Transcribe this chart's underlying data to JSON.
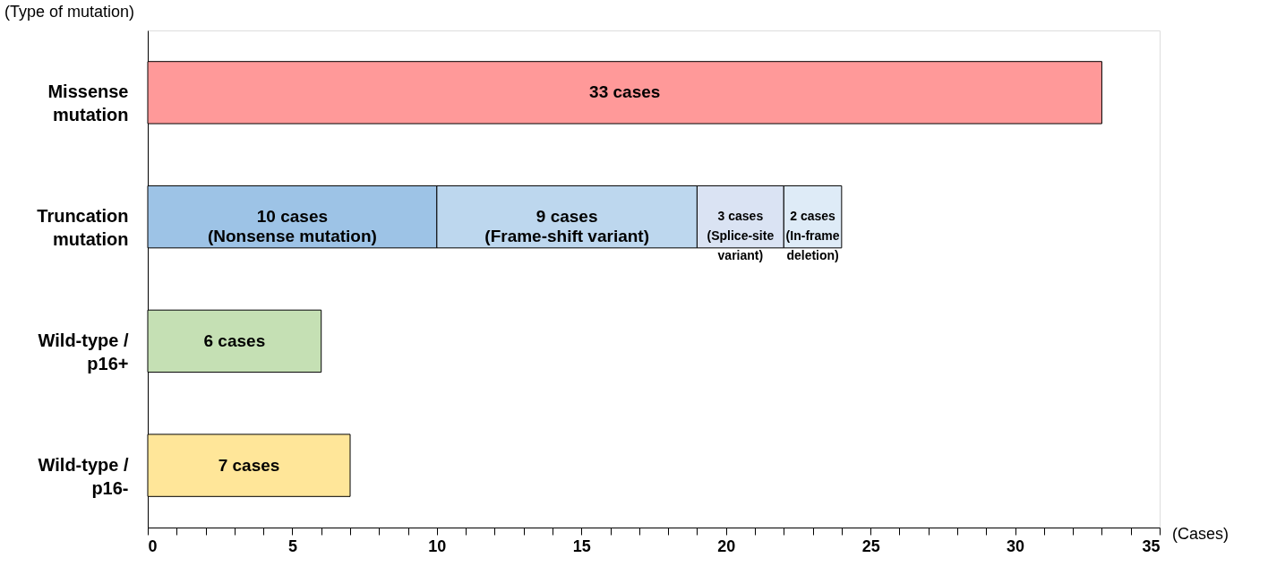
{
  "chart_data": {
    "type": "bar",
    "orientation": "horizontal",
    "stacked": true,
    "categories": [
      "Missense mutation",
      "Truncation mutation",
      "Wild-type / p16+",
      "Wild-type / p16-"
    ],
    "xlabel": "(Cases)",
    "ylabel": "(Type of mutation)",
    "xlim": [
      0,
      35
    ],
    "xticks": [
      0,
      {
        "value": 1,
        "label": null
      },
      {
        "value": 2,
        "label": null
      },
      {
        "value": 3,
        "label": null
      },
      {
        "value": 4,
        "label": null
      },
      5,
      {
        "value": 6,
        "label": null
      },
      {
        "value": 7,
        "label": null
      },
      {
        "value": 8,
        "label": null
      },
      {
        "value": 9,
        "label": null
      },
      10,
      {
        "value": 11,
        "label": null
      },
      {
        "value": 12,
        "label": null
      },
      {
        "value": 13,
        "label": null
      },
      {
        "value": 14,
        "label": null
      },
      15,
      {
        "value": 16,
        "label": null
      },
      {
        "value": 17,
        "label": null
      },
      {
        "value": 18,
        "label": null
      },
      {
        "value": 19,
        "label": null
      },
      20,
      {
        "value": 21,
        "label": null
      },
      {
        "value": 22,
        "label": null
      },
      {
        "value": 23,
        "label": null
      },
      {
        "value": 24,
        "label": null
      },
      25,
      {
        "value": 26,
        "label": null
      },
      {
        "value": 27,
        "label": null
      },
      {
        "value": 28,
        "label": null
      },
      {
        "value": 29,
        "label": null
      },
      30,
      {
        "value": 31,
        "label": null
      },
      {
        "value": 32,
        "label": null
      },
      {
        "value": 33,
        "label": null
      },
      {
        "value": 34,
        "label": null
      },
      35
    ],
    "grid": false,
    "series": [
      {
        "values": [
          33,
          10,
          6,
          7
        ],
        "colors": [
          "#ff9999",
          "#9dc3e6",
          "#c5e0b4",
          "#ffe699"
        ],
        "value_labels": [
          "33 cases",
          "10 cases\n(Nonsense mutation)",
          "6 cases",
          "7 cases"
        ]
      },
      {
        "values": [
          null,
          9,
          null,
          null
        ],
        "color": "#bdd7ee",
        "value_labels": [
          null,
          "9 cases\n(Frame-shift variant)",
          null,
          null
        ]
      },
      {
        "values": [
          null,
          3,
          null,
          null
        ],
        "color": "#dae3f3",
        "value_labels": [
          null,
          "3 cases\n(Splice-site\nvariant)",
          null,
          null
        ]
      },
      {
        "values": [
          null,
          2,
          null,
          null
        ],
        "color": "#deebf7",
        "value_labels": [
          null,
          "2 cases\n(In-frame\ndeletion)",
          null,
          null
        ]
      }
    ]
  }
}
